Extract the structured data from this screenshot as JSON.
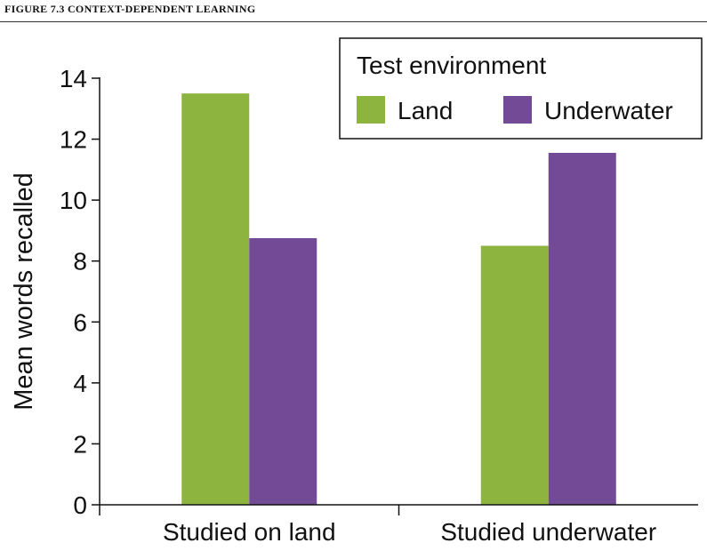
{
  "figure": {
    "title": "FIGURE 7.3 CONTEXT-DEPENDENT LEARNING"
  },
  "chart_data": {
    "type": "bar",
    "categories": [
      "Studied on land",
      "Studied underwater"
    ],
    "series": [
      {
        "name": "Land",
        "color": "#8db43e",
        "values": [
          13.5,
          8.5
        ]
      },
      {
        "name": "Underwater",
        "color": "#734a96",
        "values": [
          8.75,
          11.55
        ]
      }
    ],
    "legend_title": "Test environment",
    "legend_position": "top-right",
    "xlabel": "",
    "ylabel": "Mean words recalled",
    "ylim": [
      0,
      14
    ],
    "yticks": [
      0,
      2,
      4,
      6,
      8,
      10,
      12,
      14
    ],
    "grid": false
  }
}
